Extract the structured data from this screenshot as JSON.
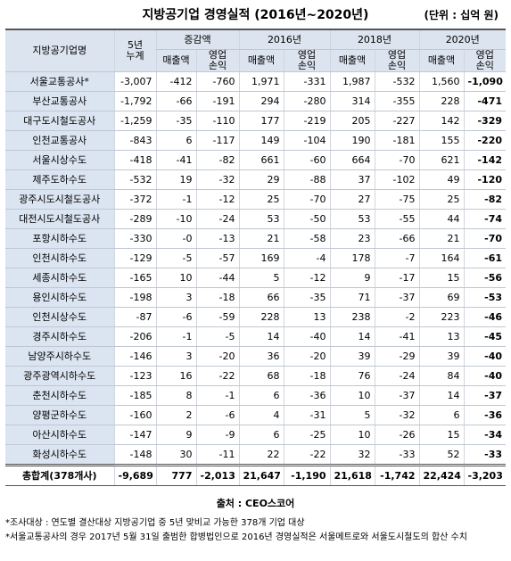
{
  "title": "지방공기업 경영실적 (2016년~2020년)",
  "unit": "(단위 : 십억 원)",
  "header": {
    "row1": [
      "지방공기업명",
      "5년\n누계",
      "증감액",
      "2016년",
      "2018년",
      "2020년"
    ],
    "row2": [
      "매출액",
      "영업\n손익",
      "매출액",
      "영업\n손익",
      "매출액",
      "영업\n손익",
      "매출액",
      "영업\n손익"
    ]
  },
  "rows": [
    [
      "서울교통공사*",
      "-3,007",
      "-412",
      "-760",
      "1,971",
      "-331",
      "1,987",
      "-532",
      "1,560",
      "-1,090"
    ],
    [
      "부산교통공사",
      "-1,792",
      "-66",
      "-191",
      "294",
      "-280",
      "314",
      "-355",
      "228",
      "-471"
    ],
    [
      "대구도시철도공사",
      "-1,259",
      "-35",
      "-110",
      "177",
      "-219",
      "205",
      "-227",
      "142",
      "-329"
    ],
    [
      "인천교통공사",
      "-843",
      "6",
      "-117",
      "149",
      "-104",
      "190",
      "-181",
      "155",
      "-220"
    ],
    [
      "서울시상수도",
      "-418",
      "-41",
      "-82",
      "661",
      "-60",
      "664",
      "-70",
      "621",
      "-142"
    ],
    [
      "제주도하수도",
      "-532",
      "19",
      "-32",
      "29",
      "-88",
      "37",
      "-102",
      "49",
      "-120"
    ],
    [
      "광주시도시철도공사",
      "-372",
      "-1",
      "-12",
      "25",
      "-70",
      "27",
      "-75",
      "25",
      "-82"
    ],
    [
      "대전시도시철도공사",
      "-289",
      "-10",
      "-24",
      "53",
      "-50",
      "53",
      "-55",
      "44",
      "-74"
    ],
    [
      "포항시하수도",
      "-330",
      "-0",
      "-13",
      "21",
      "-58",
      "23",
      "-66",
      "21",
      "-70"
    ],
    [
      "인천시하수도",
      "-129",
      "-5",
      "-57",
      "169",
      "-4",
      "178",
      "-7",
      "164",
      "-61"
    ],
    [
      "세종시하수도",
      "-165",
      "10",
      "-44",
      "5",
      "-12",
      "9",
      "-17",
      "15",
      "-56"
    ],
    [
      "용인시하수도",
      "-198",
      "3",
      "-18",
      "66",
      "-35",
      "71",
      "-37",
      "69",
      "-53"
    ],
    [
      "인천시상수도",
      "-87",
      "-6",
      "-59",
      "228",
      "13",
      "238",
      "-2",
      "223",
      "-46"
    ],
    [
      "경주시하수도",
      "-206",
      "-1",
      "-5",
      "14",
      "-40",
      "14",
      "-41",
      "13",
      "-45"
    ],
    [
      "남양주시하수도",
      "-146",
      "3",
      "-20",
      "36",
      "-20",
      "39",
      "-29",
      "39",
      "-40"
    ],
    [
      "광주광역시하수도",
      "-123",
      "16",
      "-22",
      "68",
      "-18",
      "76",
      "-24",
      "84",
      "-40"
    ],
    [
      "춘천시하수도",
      "-185",
      "8",
      "-1",
      "6",
      "-36",
      "10",
      "-37",
      "14",
      "-37"
    ],
    [
      "양평군하수도",
      "-160",
      "2",
      "-6",
      "4",
      "-31",
      "5",
      "-32",
      "6",
      "-36"
    ],
    [
      "아산시하수도",
      "-147",
      "9",
      "-9",
      "6",
      "-25",
      "10",
      "-26",
      "15",
      "-34"
    ],
    [
      "화성시하수도",
      "-148",
      "30",
      "-11",
      "22",
      "-22",
      "32",
      "-33",
      "52",
      "-33"
    ]
  ],
  "total": [
    "총합계(378개사)",
    "-9,689",
    "777",
    "-2,013",
    "21,647",
    "-1,190",
    "21,618",
    "-1,742",
    "22,424",
    "-3,203"
  ],
  "source": "출처 : CEO스코어",
  "notes": [
    "*조사대상 : 연도별 결산대상 지방공기업 중 5년 맞비교 가능한 378개 기업 대상",
    "*서울교통공사의 경우 2017년 5월 31일 출범한 합병법인으로 2016년 경영실적은 서울메트로와 서울도시철도의 합산 수치"
  ]
}
